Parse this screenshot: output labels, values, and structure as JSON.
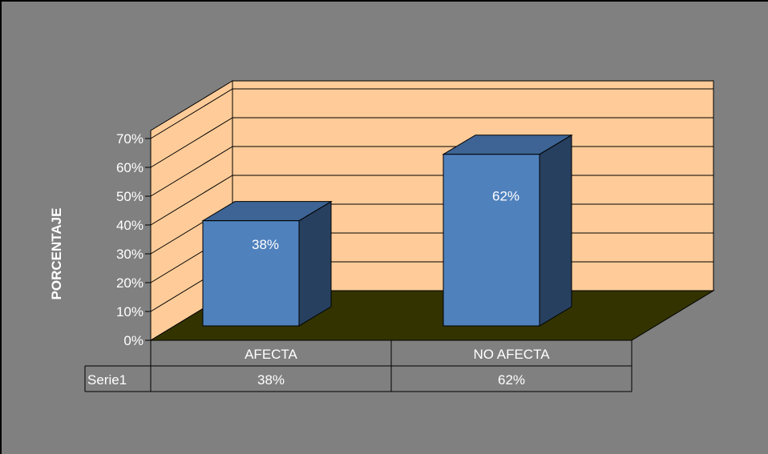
{
  "chart_data": {
    "type": "bar",
    "categories": [
      "AFECTA",
      "NO AFECTA"
    ],
    "series": [
      {
        "name": "Serie1",
        "values": [
          38,
          62
        ],
        "labels": [
          "38%",
          "62%"
        ],
        "color": "#4f81bd"
      }
    ],
    "title": "",
    "xlabel": "",
    "ylabel": "PORCENTAJE",
    "ylim": [
      0,
      70
    ],
    "yticks": [
      "0%",
      "10%",
      "20%",
      "30%",
      "40%",
      "50%",
      "60%",
      "70%"
    ],
    "grid": true,
    "data_table": true,
    "colors": {
      "background": "#808080",
      "wall": "#ffcc99",
      "floor": "#333300",
      "bar_front": "#4f81bd",
      "bar_top": "#3d6494",
      "bar_side": "#27405f"
    }
  }
}
